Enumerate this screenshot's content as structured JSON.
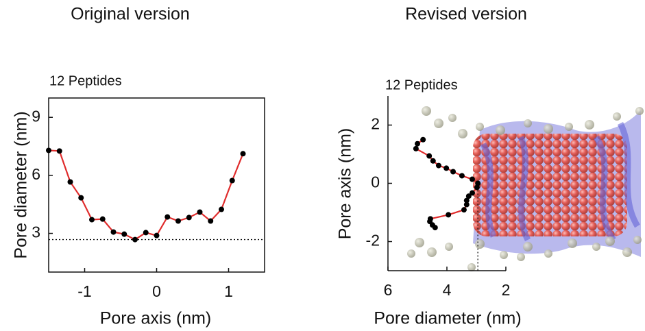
{
  "chart_data": [
    {
      "type": "line",
      "panel_title": "Original version",
      "title": "12 Peptides",
      "xlabel": "Pore axis (nm)",
      "ylabel": "Pore diameter (nm)",
      "x": [
        -1.5,
        -1.35,
        -1.2,
        -1.05,
        -0.9,
        -0.75,
        -0.6,
        -0.45,
        -0.3,
        -0.15,
        0,
        0.15,
        0.3,
        0.45,
        0.6,
        0.75,
        0.9,
        1.05,
        1.2
      ],
      "values": [
        7.29,
        7.26,
        5.66,
        4.84,
        3.71,
        3.74,
        3.07,
        2.96,
        2.68,
        3.04,
        2.89,
        3.85,
        3.64,
        3.82,
        4.1,
        3.64,
        4.24,
        5.73,
        7.12
      ],
      "color": "#e02d2d",
      "marker_color": "#000000",
      "xlim": [
        -1.5,
        1.5
      ],
      "ylim": [
        1,
        10
      ],
      "xticks": [
        -1,
        0,
        1
      ],
      "yticks": [
        3,
        6,
        9
      ],
      "hline": 2.68,
      "frame": true
    },
    {
      "type": "line",
      "panel_title": "Revised version",
      "title": "12 Peptides",
      "xlabel": "Pore diameter (nm)",
      "ylabel": "Pore axis (nm)",
      "x": [
        4.81,
        5.0,
        5.05,
        4.6,
        4.47,
        4.28,
        4.02,
        3.79,
        3.49,
        3.14,
        2.95,
        2.98,
        3.14,
        3.26,
        3.33,
        3.33,
        3.42,
        3.95,
        4.56,
        4.58,
        4.49,
        4.4
      ],
      "values": [
        1.5,
        1.36,
        1.19,
        0.94,
        0.77,
        0.61,
        0.52,
        0.4,
        0.26,
        0.14,
        0,
        -0.14,
        -0.33,
        -0.44,
        -0.59,
        -0.73,
        -0.91,
        -1.08,
        -1.22,
        -1.31,
        -1.43,
        -1.52
      ],
      "color": "#e02d2d",
      "marker_color": "#000000",
      "xlim": [
        6,
        2
      ],
      "ylim": [
        -3,
        3
      ],
      "xticks": [
        6,
        4,
        2
      ],
      "yticks": [
        -2,
        0,
        2
      ],
      "vline": 2.95,
      "frame": false
    }
  ]
}
